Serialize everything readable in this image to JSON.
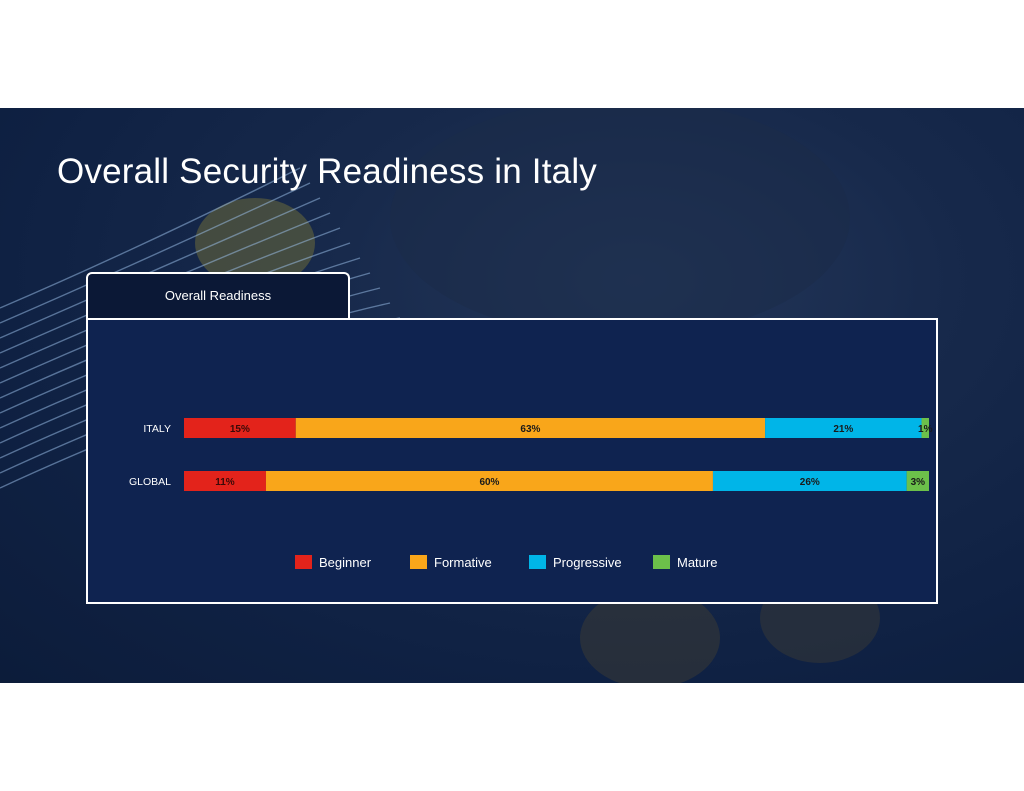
{
  "slide": {
    "title": "Overall Security Readiness in Italy",
    "panel_tab": "Overall Readiness"
  },
  "colors": {
    "background": "#0f2143",
    "panel": "#0f2350",
    "Beginner": "#e3231b",
    "Formative": "#f9a61a",
    "Progressive": "#00b5e8",
    "Mature": "#6cc04a"
  },
  "chart_data": {
    "type": "bar",
    "orientation": "horizontal",
    "stacked": true,
    "title": "Overall Readiness",
    "categories": [
      "ITALY",
      "GLOBAL"
    ],
    "series": [
      {
        "name": "Beginner",
        "values": [
          15,
          11
        ],
        "labels": [
          "15%",
          "11%"
        ]
      },
      {
        "name": "Formative",
        "values": [
          63,
          60
        ],
        "labels": [
          "63%",
          "60%"
        ]
      },
      {
        "name": "Progressive",
        "values": [
          21,
          26
        ],
        "labels": [
          "21%",
          "26%"
        ]
      },
      {
        "name": "Mature",
        "values": [
          1,
          3
        ],
        "labels": [
          "1%",
          "3%"
        ]
      }
    ],
    "xlim": [
      0,
      100
    ],
    "grid": false,
    "legend": "bottom"
  }
}
